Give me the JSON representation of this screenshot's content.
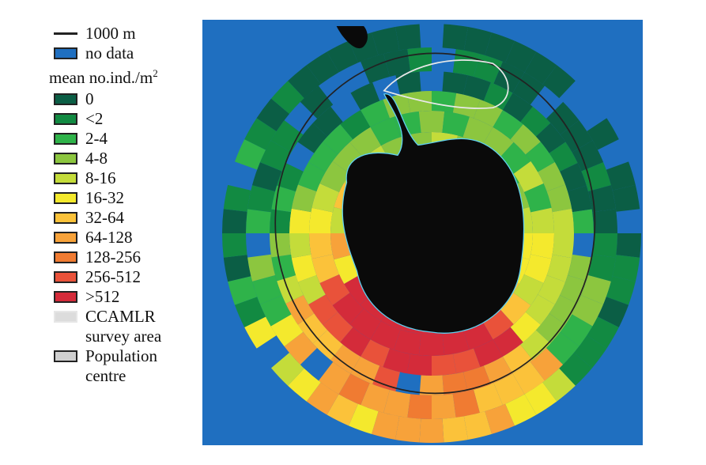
{
  "legend": {
    "contour": {
      "label": "1000 m",
      "color": "#222222"
    },
    "no_data": {
      "label": "no data",
      "color": "#1f6fc0"
    },
    "title": "mean no.ind./m",
    "title_sup": "2",
    "classes": [
      {
        "label": "0",
        "color": "#0b5e45"
      },
      {
        "label": "<2",
        "color": "#128a42"
      },
      {
        "label": "2-4",
        "color": "#2fb34a"
      },
      {
        "label": "4-8",
        "color": "#8cc63f"
      },
      {
        "label": "8-16",
        "color": "#c4dc3a"
      },
      {
        "label": "16-32",
        "color": "#f4e92d"
      },
      {
        "label": "32-64",
        "color": "#fbc23a"
      },
      {
        "label": "64-128",
        "color": "#f7a23a"
      },
      {
        "label": "128-256",
        "color": "#f07b32"
      },
      {
        "label": "256-512",
        "color": "#e9523a"
      },
      {
        "label": ">512",
        "color": "#d42b3a"
      }
    ],
    "ccamlr": {
      "label1": "CCAMLR",
      "label2": "survey area",
      "color": "#d9d9d9"
    },
    "population": {
      "label1": "Population",
      "label2": "centre",
      "color": "#cfcfcf"
    }
  },
  "map": {
    "land_color": "#0a0a0a",
    "ocean_color": "#1f6fc0",
    "coast_color": "#5fd0f0"
  }
}
